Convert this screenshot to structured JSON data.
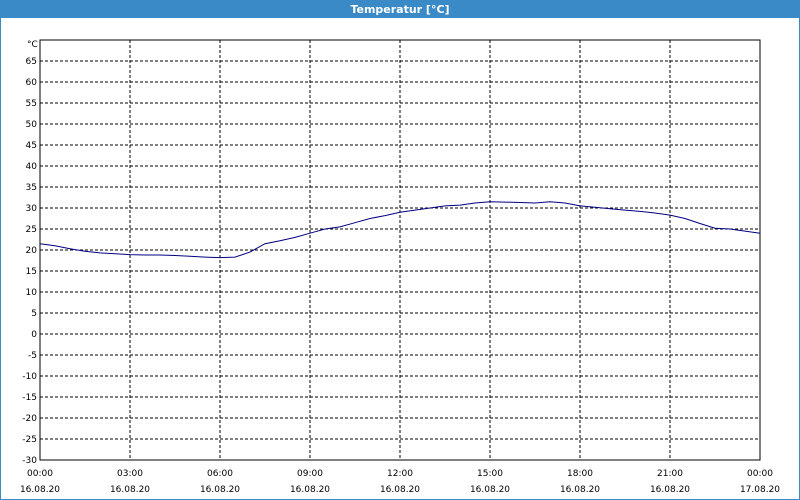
{
  "window": {
    "title": "Temperatur [°C]"
  },
  "colors": {
    "titlebar": "#3a8ac7",
    "series": "#000080",
    "grid": "#000000"
  },
  "chart_data": {
    "type": "line",
    "ylabel": "°C",
    "ylim": [
      -30,
      70
    ],
    "xlim": [
      0,
      24
    ],
    "grid": true,
    "legend": "none",
    "yticks": [
      "65",
      "60",
      "55",
      "50",
      "45",
      "40",
      "35",
      "30",
      "25",
      "20",
      "15",
      "10",
      "5",
      "0",
      "-5",
      "-10",
      "-15",
      "-20",
      "-25",
      "-30"
    ],
    "ytick_values": [
      65,
      60,
      55,
      50,
      45,
      40,
      35,
      30,
      25,
      20,
      15,
      10,
      5,
      0,
      -5,
      -10,
      -15,
      -20,
      -25,
      -30
    ],
    "xticks": [
      {
        "time": "00:00",
        "date": "16.08.20",
        "value": 0
      },
      {
        "time": "03:00",
        "date": "16.08.20",
        "value": 3
      },
      {
        "time": "06:00",
        "date": "16.08.20",
        "value": 6
      },
      {
        "time": "09:00",
        "date": "16.08.20",
        "value": 9
      },
      {
        "time": "12:00",
        "date": "16.08.20",
        "value": 12
      },
      {
        "time": "15:00",
        "date": "16.08.20",
        "value": 15
      },
      {
        "time": "18:00",
        "date": "16.08.20",
        "value": 18
      },
      {
        "time": "21:00",
        "date": "16.08.20",
        "value": 21
      },
      {
        "time": "00:00",
        "date": "17.08.20",
        "value": 24
      }
    ],
    "series": [
      {
        "x": [
          0,
          0.5,
          1,
          1.5,
          2,
          2.5,
          3,
          3.5,
          4,
          4.5,
          5,
          5.5,
          6,
          6.5,
          7,
          7.5,
          8,
          8.5,
          9,
          9.5,
          10,
          10.5,
          11,
          11.5,
          12,
          12.5,
          13,
          13.5,
          14,
          14.5,
          15,
          15.5,
          16,
          16.5,
          17,
          17.5,
          18,
          18.5,
          19,
          19.5,
          20,
          20.5,
          21,
          21.5,
          22,
          22.5,
          23,
          23.5,
          24
        ],
        "y": [
          21.5,
          21.0,
          20.3,
          19.7,
          19.3,
          19.1,
          18.9,
          18.8,
          18.8,
          18.7,
          18.5,
          18.3,
          18.2,
          18.3,
          19.5,
          21.5,
          22.2,
          23.0,
          24.0,
          25.0,
          25.5,
          26.5,
          27.5,
          28.2,
          29.0,
          29.5,
          30.0,
          30.5,
          30.7,
          31.2,
          31.5,
          31.4,
          31.3,
          31.2,
          31.5,
          31.2,
          30.5,
          30.2,
          29.8,
          29.5,
          29.2,
          28.8,
          28.3,
          27.5,
          26.3,
          25.2,
          25.0,
          24.5,
          24.0
        ]
      }
    ]
  }
}
